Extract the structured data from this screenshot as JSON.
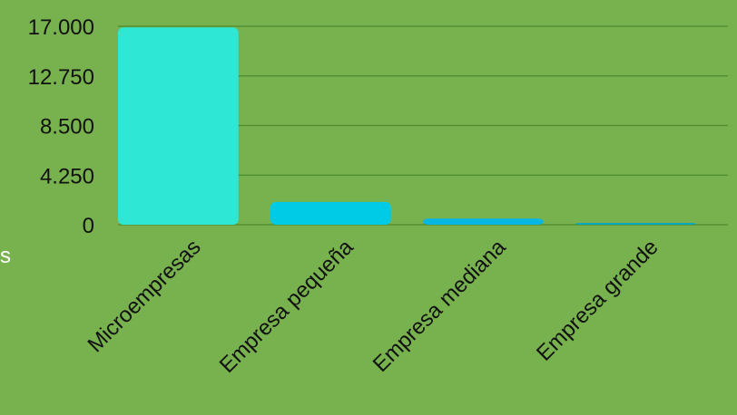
{
  "colors": {
    "background": "#78b24f",
    "gridline": "#4b8a2f",
    "bar_fills": [
      "#2ee8d5",
      "#00cbe6",
      "#06b6e3",
      "#00a8c0"
    ]
  },
  "edge_fragment": "s",
  "chart_data": {
    "type": "bar",
    "categories": [
      "Microempresas",
      "Empresa pequeña",
      "Empresa mediana",
      "Empresa grande"
    ],
    "values": [
      16900,
      1950,
      520,
      160
    ],
    "ylim": [
      0,
      17000
    ],
    "yticks": [
      0,
      4250,
      8500,
      12750,
      17000
    ],
    "ytick_labels": [
      "0",
      "4.250",
      "8.500",
      "12.750",
      "17.000"
    ],
    "grid": true,
    "legend": "none"
  }
}
